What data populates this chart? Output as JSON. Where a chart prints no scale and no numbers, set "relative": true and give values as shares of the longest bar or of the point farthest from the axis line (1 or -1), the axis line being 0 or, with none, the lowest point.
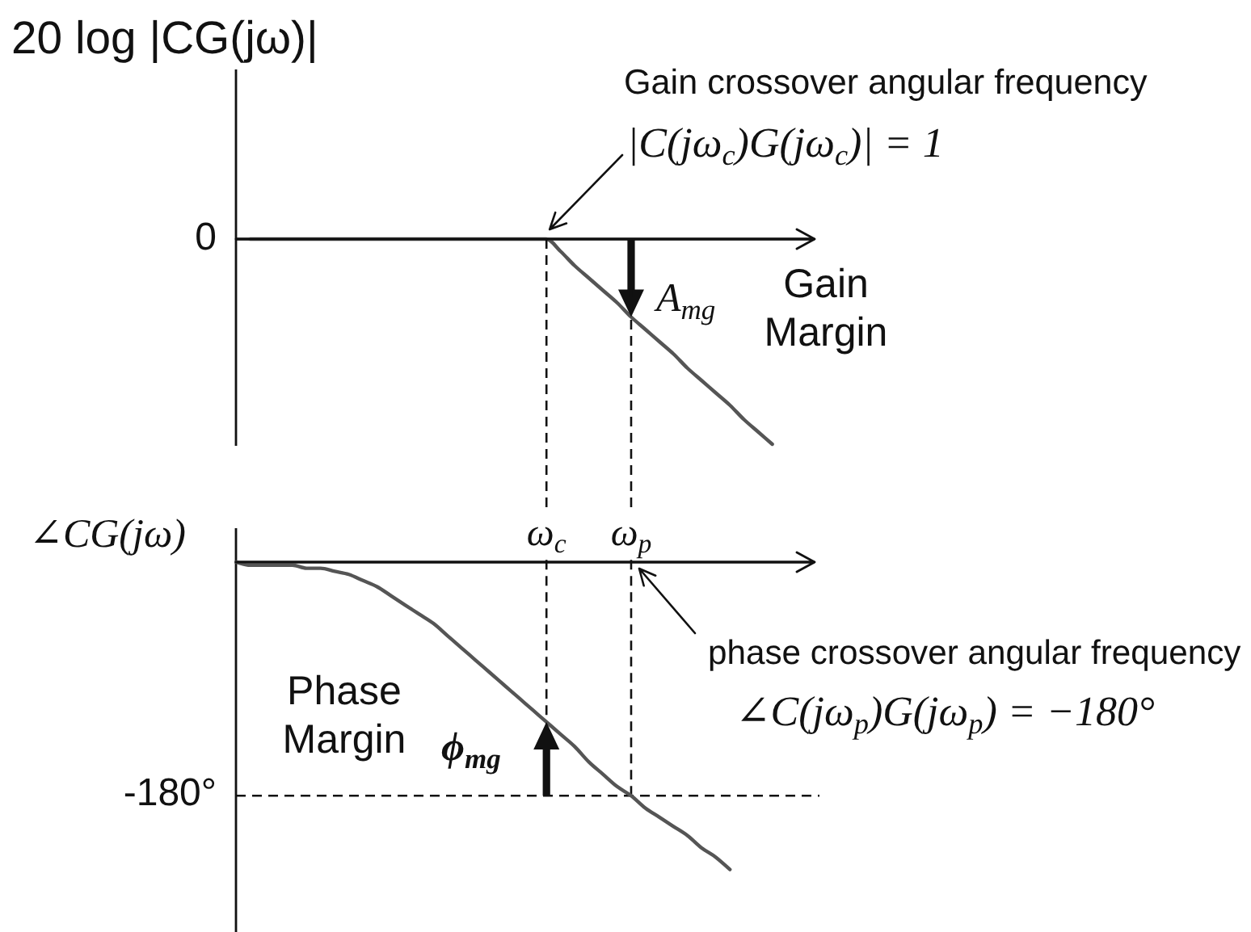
{
  "chart_data": [
    {
      "type": "line",
      "relative": true,
      "ylabel": "20 log |CG(jω)|",
      "categories": [
        null,
        null,
        null,
        null,
        null,
        null,
        null,
        null,
        null,
        null,
        null,
        null,
        null,
        null,
        null,
        null,
        null,
        null,
        null,
        null,
        null,
        null,
        null,
        null,
        null,
        null,
        null,
        null,
        null,
        null,
        null,
        null,
        null,
        null,
        null,
        null,
        null,
        null,
        null,
        null,
        null,
        null
      ],
      "series": [
        {
          "color": "#555555",
          "values": [
            null,
            0,
            0,
            0,
            0,
            0,
            0,
            0,
            0,
            0,
            0,
            0,
            0,
            0,
            0,
            0,
            0,
            0,
            0,
            0,
            0,
            0,
            0,
            -0.06,
            -0.13,
            -0.19,
            -0.25,
            -0.31,
            -0.38,
            -0.44,
            -0.5,
            -0.56,
            -0.63,
            -0.69,
            -0.75,
            -0.81,
            -0.88,
            -0.94,
            -1,
            null,
            null,
            null
          ]
        }
      ],
      "ref_lines": [
        {
          "axis": "y",
          "value": 0,
          "label": "0"
        }
      ],
      "annotations": [
        "Gain crossover angular frequency",
        "|C(jω$_{c}$)G(jω$_{c}$)| = 1",
        "A$_{mg}$",
        "Gain Margin"
      ]
    },
    {
      "type": "line",
      "relative": true,
      "ylabel": "∠CG(jω)",
      "categories": [
        null,
        null,
        null,
        null,
        null,
        null,
        null,
        null,
        null,
        null,
        null,
        null,
        null,
        null,
        null,
        null,
        null,
        null,
        null,
        null,
        null,
        null,
        "ω$_{c}$",
        null,
        null,
        null,
        null,
        null,
        "ω$_{p}$",
        null,
        null,
        null,
        null,
        null,
        null,
        null,
        null,
        null,
        null,
        null,
        null,
        null
      ],
      "series": [
        {
          "color": "#555555",
          "values": [
            0,
            -0.01,
            -0.01,
            -0.01,
            -0.01,
            -0.02,
            -0.02,
            -0.03,
            -0.04,
            -0.06,
            -0.08,
            -0.11,
            -0.14,
            -0.17,
            -0.2,
            -0.24,
            -0.28,
            -0.32,
            -0.36,
            -0.4,
            -0.44,
            -0.48,
            -0.52,
            -0.56,
            -0.6,
            -0.65,
            -0.69,
            -0.73,
            -0.76,
            -0.8,
            -0.83,
            -0.86,
            -0.89,
            -0.93,
            -0.96,
            -1,
            null,
            null,
            null,
            null,
            null,
            null
          ]
        }
      ],
      "ref_lines": [
        {
          "axis": "y",
          "value": -0.76,
          "line_style": "dashed"
        },
        {
          "axis": "x",
          "value": "ω$_{c}$",
          "line_style": "dashed"
        },
        {
          "axis": "x",
          "value": "ω$_{p}$",
          "line_style": "dashed"
        }
      ],
      "annotations": [
        "phase crossover angular frequency",
        "∠C(jω$_{p}$)G(jω$_{p}$) = −180°",
        "Phase Margin",
        "ϕ$_{mg}$",
        "-180°"
      ]
    }
  ]
}
